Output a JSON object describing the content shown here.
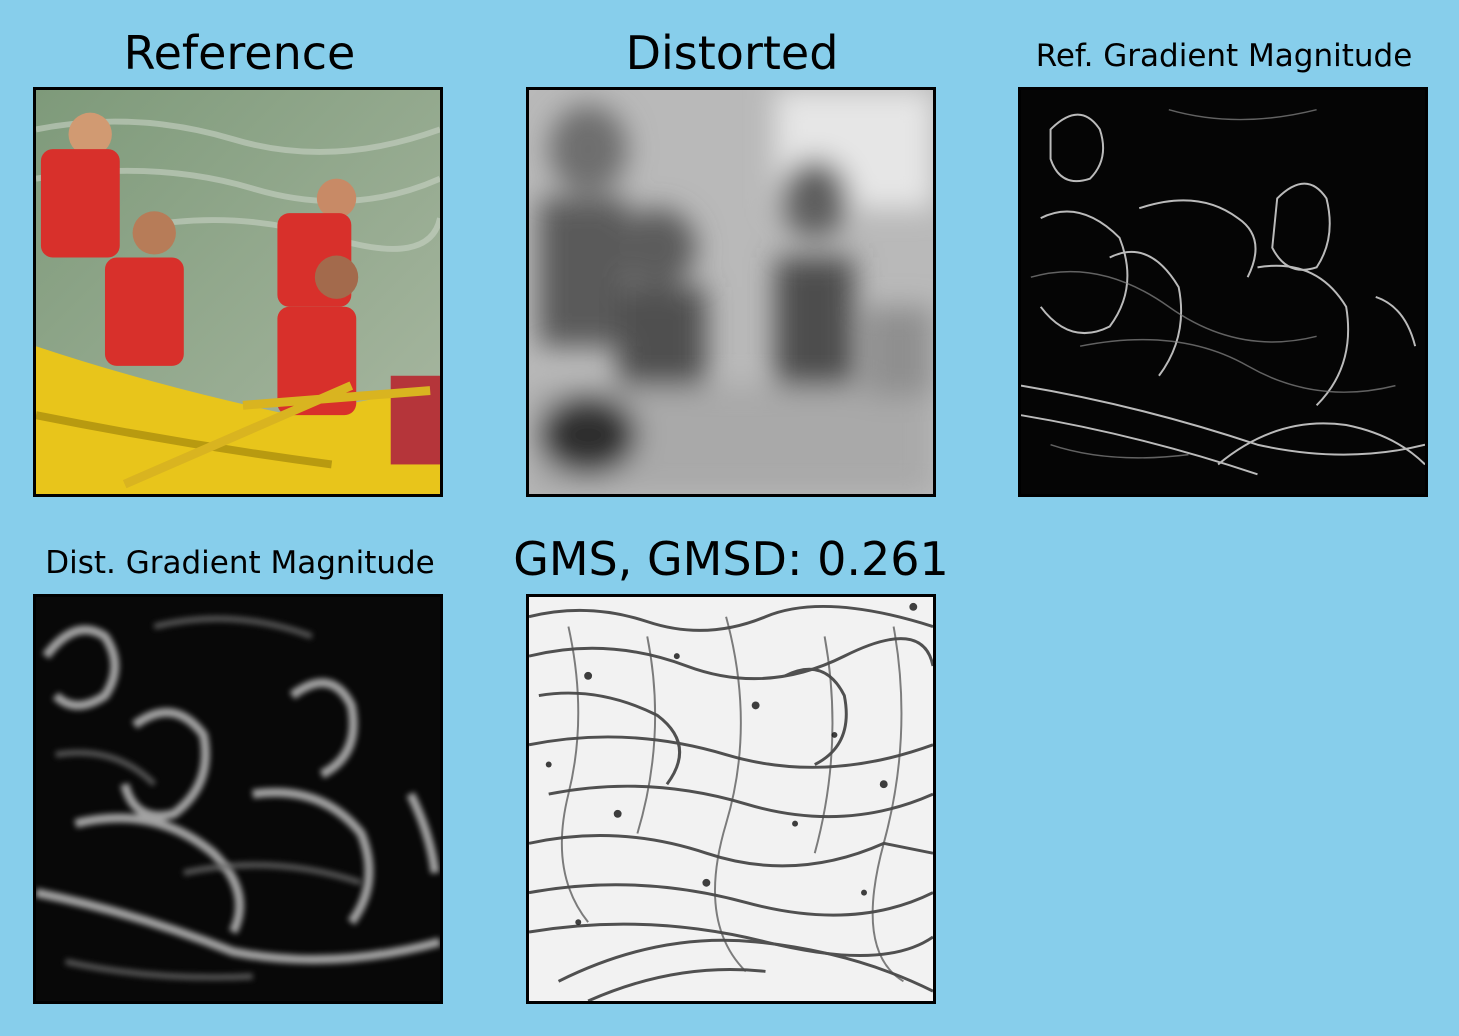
{
  "figure": {
    "background_color": "#87ceeb",
    "panels": [
      {
        "title": "Reference",
        "content": "color photo of people rafting"
      },
      {
        "title": "Distorted",
        "content": "blurred grayscale photo"
      },
      {
        "title": "Ref. Gradient Magnitude",
        "content": "gradient magnitude map (sharp edges)"
      },
      {
        "title": "Dist. Gradient Magnitude",
        "content": "gradient magnitude map (blurred edges)"
      },
      {
        "title": "GMS, GMSD: 0.261",
        "content": "gradient magnitude similarity map"
      }
    ]
  }
}
